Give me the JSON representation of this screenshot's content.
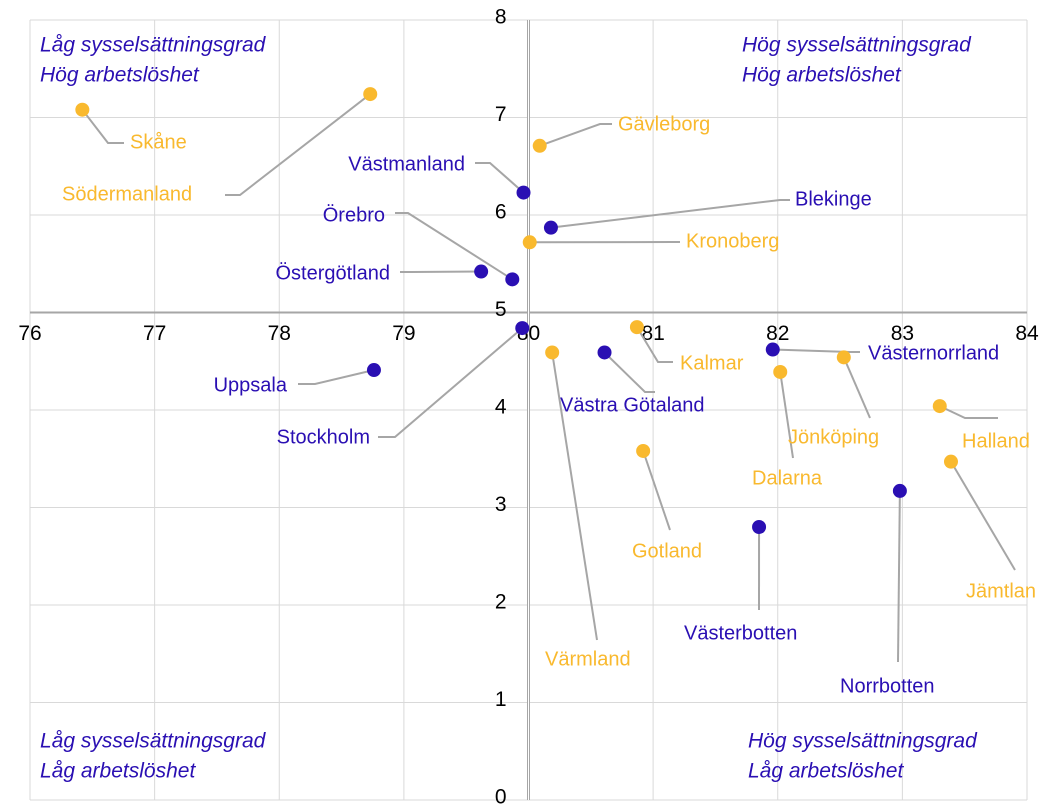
{
  "chart_data": {
    "type": "scatter",
    "annotations": [
      {
        "lines": [
          "Låg sysselsättningsgrad",
          "Hög arbetslöshet"
        ]
      },
      {
        "lines": [
          "Hög sysselsättningsgrad",
          "Hög arbetslöshet"
        ]
      },
      {
        "lines": [
          "Låg sysselsättningsgrad",
          "Låg arbetslöshet"
        ]
      },
      {
        "lines": [
          "Hög sysselsättningsgrad",
          "Låg arbetslöshet"
        ]
      }
    ],
    "xlim": [
      76,
      84
    ],
    "xticks": [
      76,
      77,
      78,
      79,
      80,
      81,
      82,
      83,
      84
    ],
    "ylim": [
      0,
      8
    ],
    "yticks": [
      0,
      1,
      2,
      3,
      4,
      5,
      6,
      7,
      8
    ],
    "axis_cross": {
      "x": 80,
      "y": 5
    },
    "grid": true,
    "points": [
      {
        "label": "Skåne",
        "x": 76.42,
        "y": 7.08,
        "color": "#f9b92e"
      },
      {
        "label": "Södermanland",
        "x": 78.73,
        "y": 7.24,
        "color": "#f9b92e"
      },
      {
        "label": "Gävleborg",
        "x": 80.09,
        "y": 6.71,
        "color": "#f9b92e"
      },
      {
        "label": "Västmanland",
        "x": 79.96,
        "y": 6.23,
        "color": "#2a0fb3"
      },
      {
        "label": "Blekinge",
        "x": 80.18,
        "y": 5.87,
        "color": "#2a0fb3"
      },
      {
        "label": "Kronoberg",
        "x": 80.01,
        "y": 5.72,
        "color": "#f9b92e"
      },
      {
        "label": "Örebro",
        "x": 79.87,
        "y": 5.34,
        "color": "#2a0fb3"
      },
      {
        "label": "Östergötland",
        "x": 79.62,
        "y": 5.42,
        "color": "#2a0fb3"
      },
      {
        "label": "Stockholm",
        "x": 79.95,
        "y": 4.84,
        "color": "#2a0fb3"
      },
      {
        "label": "Uppsala",
        "x": 78.76,
        "y": 4.41,
        "color": "#2a0fb3"
      },
      {
        "label": "Värmland",
        "x": 80.19,
        "y": 4.59,
        "color": "#f9b92e"
      },
      {
        "label": "Kalmar",
        "x": 80.87,
        "y": 4.85,
        "color": "#f9b92e"
      },
      {
        "label": "Västra Götaland",
        "x": 80.61,
        "y": 4.59,
        "color": "#2a0fb3"
      },
      {
        "label": "Västernorrland",
        "x": 81.96,
        "y": 4.62,
        "color": "#2a0fb3"
      },
      {
        "label": "Jönköping",
        "x": 82.53,
        "y": 4.54,
        "color": "#f9b92e"
      },
      {
        "label": "Dalarna",
        "x": 82.02,
        "y": 4.39,
        "color": "#f9b92e"
      },
      {
        "label": "Halland",
        "x": 83.3,
        "y": 4.04,
        "color": "#f9b92e"
      },
      {
        "label": "Jämtlan",
        "x": 83.39,
        "y": 3.47,
        "color": "#f9b92e"
      },
      {
        "label": "Gotland",
        "x": 80.92,
        "y": 3.58,
        "color": "#f9b92e"
      },
      {
        "label": "Västerbotten",
        "x": 81.85,
        "y": 2.8,
        "color": "#2a0fb3"
      },
      {
        "label": "Norrbotten",
        "x": 82.98,
        "y": 3.17,
        "color": "#2a0fb3"
      }
    ]
  }
}
